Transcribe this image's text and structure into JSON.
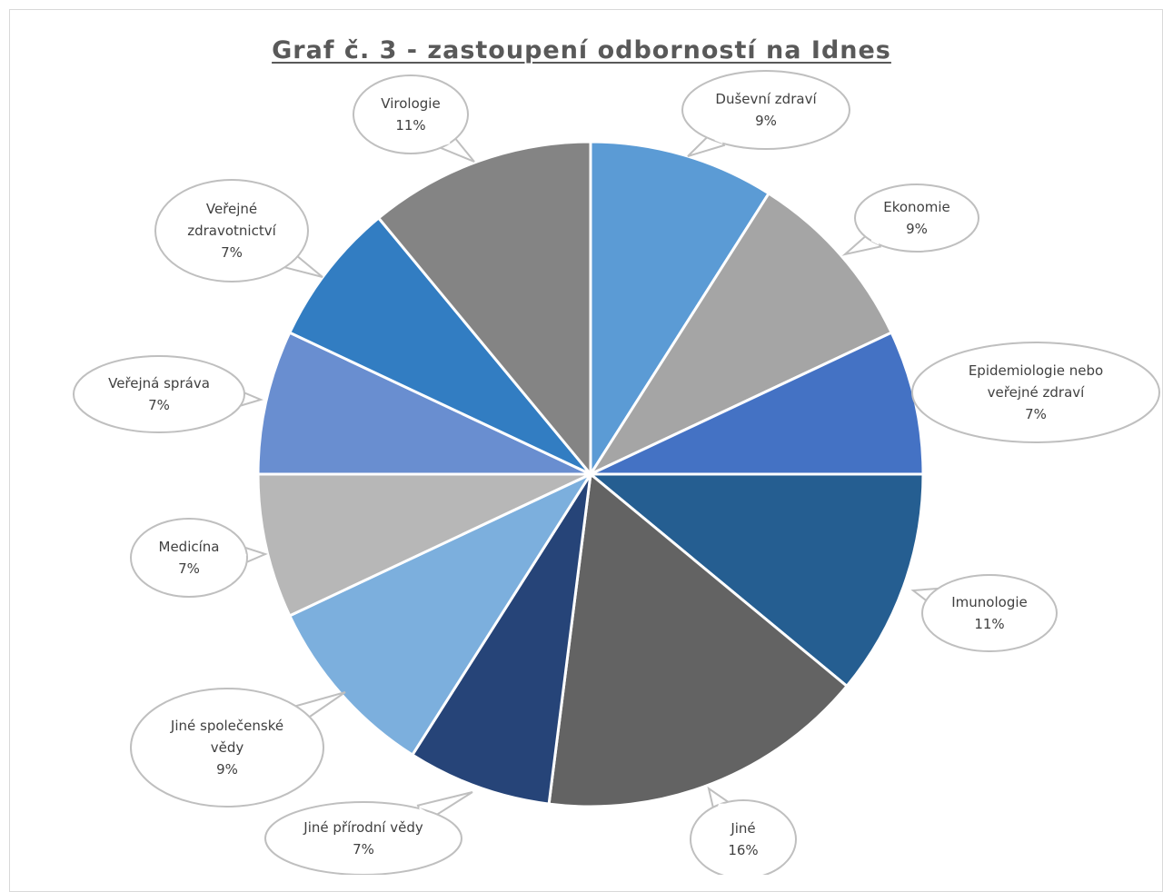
{
  "chart_data": {
    "type": "pie",
    "title": "Graf č. 3 - zastoupení odborností na Idnes",
    "slices": [
      {
        "label": "Duševní zdraví",
        "value": 9,
        "value_label": "9%",
        "color": "#5B9BD5"
      },
      {
        "label": "Ekonomie",
        "value": 9,
        "value_label": "9%",
        "color": "#A5A5A5"
      },
      {
        "label": "Epidemiologie nebo veřejné zdraví",
        "value": 7,
        "value_label": "7%",
        "color": "#4472C4"
      },
      {
        "label": "Imunologie",
        "value": 11,
        "value_label": "11%",
        "color": "#255E91"
      },
      {
        "label": "Jiné",
        "value": 16,
        "value_label": "16%",
        "color": "#636363"
      },
      {
        "label": "Jiné přírodní vědy",
        "value": 7,
        "value_label": "7%",
        "color": "#264478"
      },
      {
        "label": "Jiné společenské vědy",
        "value": 9,
        "value_label": "9%",
        "color": "#7CAFDD"
      },
      {
        "label": "Medicína",
        "value": 7,
        "value_label": "7%",
        "color": "#B7B7B7"
      },
      {
        "label": "Veřejná správa",
        "value": 7,
        "value_label": "7%",
        "color": "#698ED0"
      },
      {
        "label": "Veřejné zdravotnictví",
        "value": 7,
        "value_label": "7%",
        "color": "#327DC2"
      },
      {
        "label": "Virologie",
        "value": 11,
        "value_label": "11%",
        "color": "#848484"
      }
    ]
  }
}
